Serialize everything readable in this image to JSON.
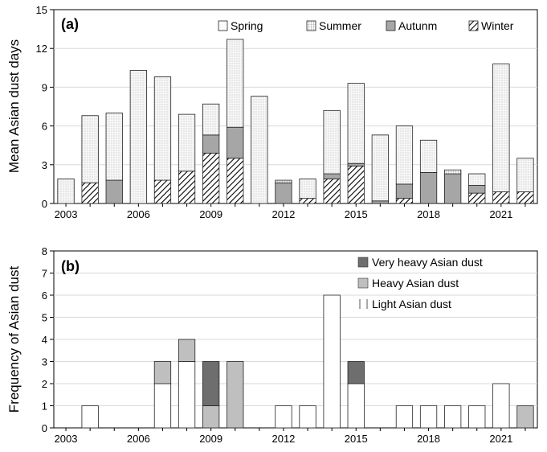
{
  "chart_data": [
    {
      "panel": "(a)",
      "type": "bar",
      "stacked": true,
      "ylabel": "Mean Asian dust days",
      "ylim": [
        0,
        15
      ],
      "yticks": [
        0,
        3,
        6,
        9,
        12,
        15
      ],
      "xlim": [
        2002.5,
        2022.5
      ],
      "xticks": [
        "2003",
        "2006",
        "2009",
        "2012",
        "2015",
        "2018",
        "2021"
      ],
      "x": [
        2003,
        2004,
        2005,
        2006,
        2007,
        2008,
        2009,
        2010,
        2011,
        2012,
        2013,
        2014,
        2015,
        2016,
        2017,
        2018,
        2019,
        2020,
        2021,
        2022
      ],
      "legend_position": "top",
      "series": [
        {
          "name": "Winter",
          "color": "#ffffff",
          "pattern": "diag",
          "values": [
            0,
            1.6,
            0,
            0,
            1.8,
            2.5,
            3.9,
            3.5,
            0,
            0,
            0.4,
            1.9,
            2.9,
            0,
            0.4,
            0,
            0,
            0.8,
            0.9,
            0.9
          ]
        },
        {
          "name": "Autunm",
          "color": "#a6a6a6",
          "pattern": "none",
          "values": [
            0,
            0,
            1.8,
            0,
            0,
            0,
            1.4,
            2.4,
            0,
            1.6,
            0,
            0.4,
            0.2,
            0.2,
            1.1,
            2.4,
            2.3,
            0.6,
            0,
            0
          ]
        },
        {
          "name": "Summer",
          "color": "#ffffff",
          "pattern": "grid",
          "values": [
            0,
            0,
            0,
            0,
            0,
            0,
            0,
            0,
            0,
            0.2,
            0,
            0,
            0,
            0,
            0,
            0,
            0.3,
            0,
            0,
            0
          ]
        },
        {
          "name": "Spring",
          "color": "#f4f4f4",
          "pattern": "dots",
          "values": [
            1.9,
            5.2,
            5.2,
            10.3,
            8.0,
            4.4,
            2.4,
            6.8,
            8.3,
            0,
            1.5,
            4.9,
            6.2,
            5.1,
            4.5,
            2.5,
            0,
            0.9,
            9.9,
            2.6
          ]
        }
      ]
    },
    {
      "panel": "(b)",
      "type": "bar",
      "stacked": true,
      "ylabel": "Frequency of Asian dust",
      "ylim": [
        0,
        8
      ],
      "yticks": [
        0,
        1,
        2,
        3,
        4,
        5,
        6,
        7,
        8
      ],
      "xlim": [
        2002.5,
        2022.5
      ],
      "xticks": [
        "2003",
        "2006",
        "2009",
        "2012",
        "2015",
        "2018",
        "2021"
      ],
      "x": [
        2003,
        2004,
        2005,
        2006,
        2007,
        2008,
        2009,
        2010,
        2011,
        2012,
        2013,
        2014,
        2015,
        2016,
        2017,
        2018,
        2019,
        2020,
        2021,
        2022
      ],
      "legend_position": "top-right",
      "series": [
        {
          "name": "Light Asian dust",
          "color": "#ffffff",
          "pattern": "none",
          "values": [
            0,
            1,
            0,
            0,
            2,
            3,
            0,
            0,
            0,
            1,
            1,
            6,
            2,
            0,
            1,
            1,
            1,
            1,
            2,
            0
          ]
        },
        {
          "name": "Heavy Asian dust",
          "color": "#bfbfbf",
          "pattern": "none",
          "values": [
            0,
            0,
            0,
            0,
            1,
            1,
            1,
            3,
            0,
            0,
            0,
            0,
            0,
            0,
            0,
            0,
            0,
            0,
            0,
            1
          ]
        },
        {
          "name": "Very heavy Asian dust",
          "color": "#6e6e6e",
          "pattern": "none",
          "values": [
            0,
            0,
            0,
            0,
            0,
            0,
            2,
            0,
            0,
            0,
            0,
            0,
            1,
            0,
            0,
            0,
            0,
            0,
            0,
            0
          ]
        }
      ]
    }
  ],
  "legend_a_order": [
    "Spring",
    "Summer",
    "Autunm",
    "Winter"
  ],
  "legend_b_order": [
    "Very heavy Asian dust",
    "Heavy Asian dust",
    "Light Asian dust"
  ]
}
